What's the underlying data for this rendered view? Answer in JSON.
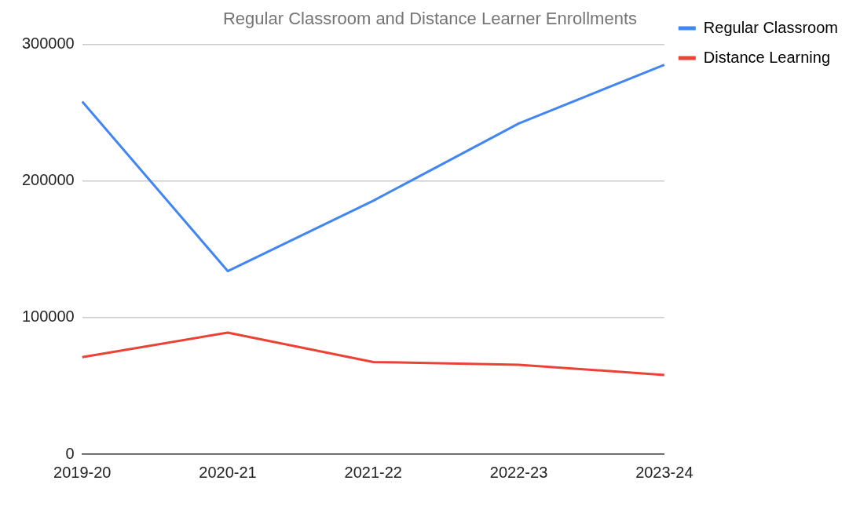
{
  "chart_data": {
    "type": "line",
    "title": "Regular Classroom and Distance Learner Enrollments",
    "categories": [
      "2019-20",
      "2020-21",
      "2021-22",
      "2022-23",
      "2023-24"
    ],
    "series": [
      {
        "name": "Regular Classroom",
        "color": "#4285f4",
        "values": [
          258000,
          134000,
          185500,
          242000,
          285000
        ]
      },
      {
        "name": "Distance Learning",
        "color": "#ea4335",
        "values": [
          71000,
          89000,
          67500,
          65500,
          58000
        ]
      }
    ],
    "ylim": [
      0,
      300000
    ],
    "yticks": [
      0,
      100000,
      200000,
      300000
    ],
    "grid": "y",
    "legend": "top right",
    "marker": "none",
    "line_style": "solid"
  }
}
